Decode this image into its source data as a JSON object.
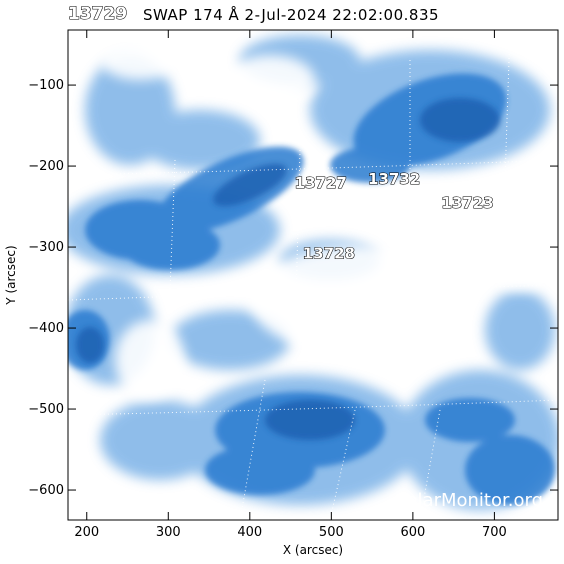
{
  "header": {
    "corner_region": "13729",
    "title": "SWAP 174 Å  2-Jul-2024 22:02:00.835"
  },
  "map": {
    "xlabel": "X (arcsec)",
    "ylabel": "Y (arcsec)",
    "x_range": [
      177,
      778
    ],
    "y_range": [
      -637,
      -32
    ],
    "x_ticks": [
      "200",
      "300",
      "400",
      "500",
      "600",
      "700"
    ],
    "y_ticks": [
      "-100",
      "-200",
      "-300",
      "-400",
      "-500",
      "-600"
    ],
    "colormap": [
      "#ffffff",
      "#1f6fc8"
    ],
    "grid": "dotted heliographic grid",
    "regions": [
      {
        "label": "13727",
        "x": 455,
        "y": -227
      },
      {
        "label": "13732",
        "x": 545,
        "y": -222
      },
      {
        "label": "13723",
        "x": 635,
        "y": -252
      },
      {
        "label": "13728",
        "x": 465,
        "y": -314
      }
    ]
  },
  "watermark": "SolarMonitor.org"
}
